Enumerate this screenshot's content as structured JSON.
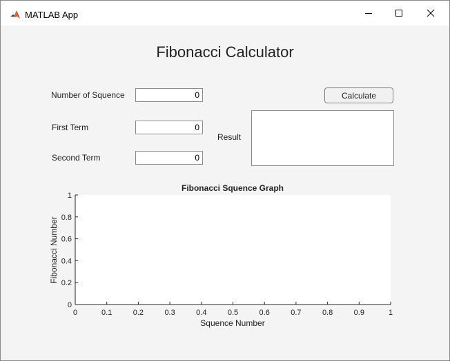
{
  "window": {
    "title": "MATLAB App",
    "app_icon": "matlab-logo-icon",
    "controls": [
      "minimize-icon",
      "maximize-icon",
      "close-icon"
    ]
  },
  "app": {
    "title": "Fibonacci Calculator",
    "fields": [
      {
        "label": "Number of Squence",
        "value": "0"
      },
      {
        "label": "First Term",
        "value": "0"
      },
      {
        "label": "Second Term",
        "value": "0"
      }
    ],
    "calculate_label": "Calculate",
    "result_label": "Result",
    "result_value": ""
  },
  "chart_data": {
    "type": "line",
    "title": "Fibonacci Squence Graph",
    "xlabel": "Squence Number",
    "ylabel": "Fibonacci Number",
    "xlim": [
      0,
      1
    ],
    "ylim": [
      0,
      1
    ],
    "xticks": [
      "0",
      "0.1",
      "0.2",
      "0.3",
      "0.4",
      "0.5",
      "0.6",
      "0.7",
      "0.8",
      "0.9",
      "1"
    ],
    "yticks": [
      "0",
      "0.2",
      "0.4",
      "0.6",
      "0.8",
      "1"
    ],
    "series": [],
    "grid": false
  }
}
